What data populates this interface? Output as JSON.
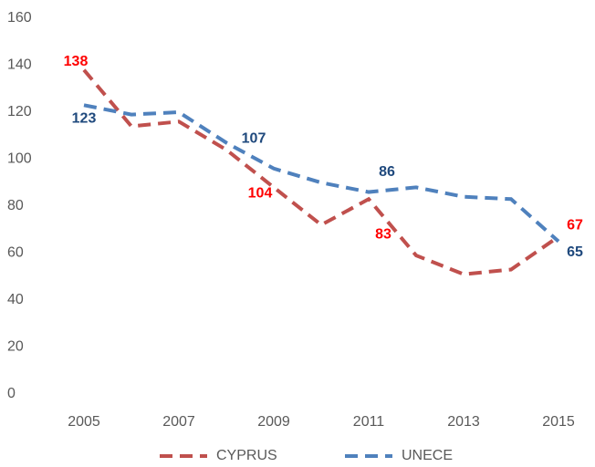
{
  "chart_data": {
    "type": "line",
    "x": [
      2005,
      2006,
      2007,
      2008,
      2009,
      2010,
      2011,
      2012,
      2013,
      2014,
      2015
    ],
    "xlim": [
      2005,
      2015
    ],
    "xticks": [
      2005,
      2007,
      2009,
      2011,
      2013,
      2015
    ],
    "ylim": [
      0,
      160
    ],
    "yticks": [
      0,
      20,
      40,
      60,
      80,
      100,
      120,
      140,
      160
    ],
    "grid": false,
    "legend": "bottom",
    "dashed": true,
    "labeled_points": [
      0,
      3,
      6,
      10
    ],
    "series": [
      {
        "name": "CYPRUS",
        "color": "#c0504d",
        "label_color": "#ff0000",
        "values": [
          138,
          114,
          116,
          104,
          88,
          72,
          83,
          59,
          51,
          53,
          67
        ]
      },
      {
        "name": "UNECE",
        "color": "#4f81bd",
        "label_color": "#1f497d",
        "values": [
          123,
          119,
          120,
          107,
          96,
          90,
          86,
          88,
          84,
          83,
          65
        ]
      }
    ]
  }
}
